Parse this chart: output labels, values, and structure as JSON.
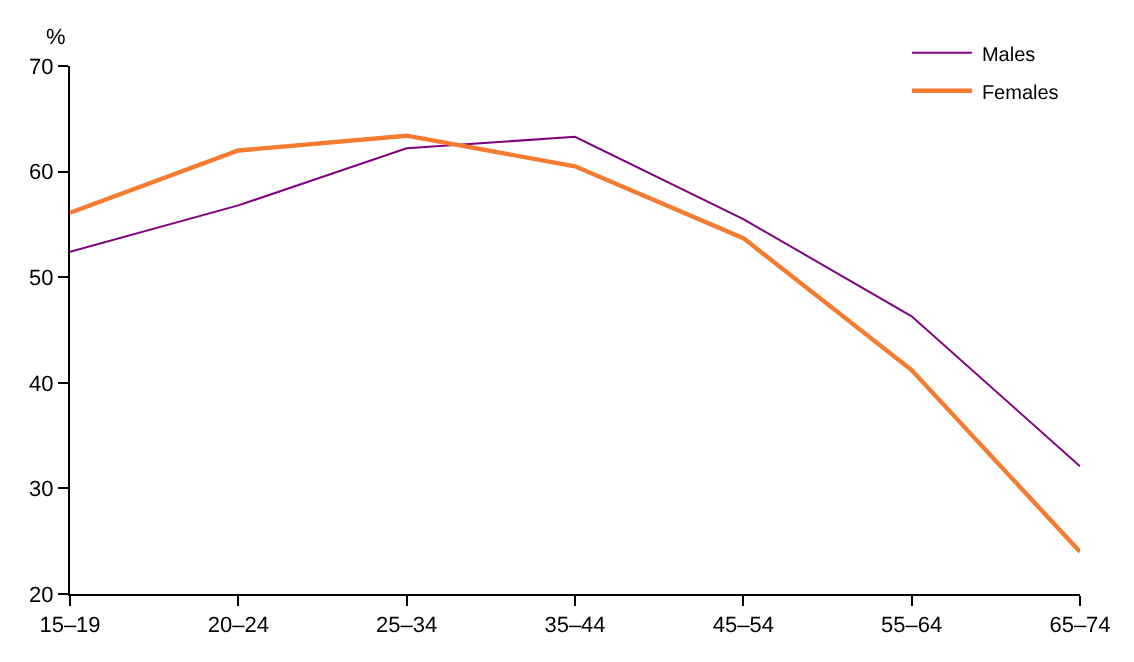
{
  "chart_data": {
    "type": "line",
    "ylabel": "%",
    "categories": [
      "15–19",
      "20–24",
      "25–34",
      "35–44",
      "45–54",
      "55–64",
      "65–74"
    ],
    "series": [
      {
        "name": "Males",
        "color": "#800080",
        "values": [
          52.4,
          56.8,
          62.2,
          63.3,
          55.5,
          46.3,
          32.1
        ]
      },
      {
        "name": "Females",
        "color": "#f47b2f",
        "values": [
          56.1,
          62.0,
          63.4,
          60.5,
          53.7,
          41.2,
          24.0
        ]
      }
    ],
    "ylim": [
      20,
      70
    ],
    "yticks": [
      20,
      30,
      40,
      50,
      60,
      70
    ],
    "grid": false,
    "legend": "top right",
    "marker": "none",
    "line_style": "solid"
  }
}
